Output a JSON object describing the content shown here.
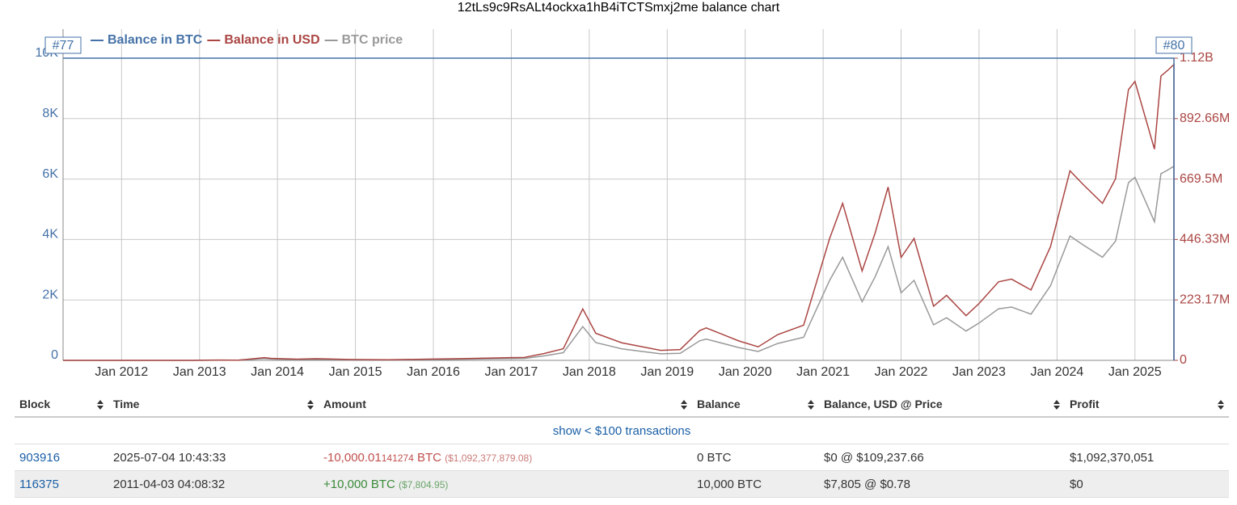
{
  "chart_data": {
    "type": "line",
    "title": "12tLs9c9RsALt4ockxa1hB4iTCTSmxj2me balance chart",
    "x": [
      "2011-04",
      "2011-06",
      "2011-12",
      "2012-06",
      "2012-12",
      "2013-04",
      "2013-07",
      "2013-11",
      "2013-12",
      "2014-04",
      "2014-07",
      "2014-12",
      "2015-06",
      "2015-12",
      "2016-06",
      "2016-12",
      "2017-03",
      "2017-06",
      "2017-09",
      "2017-12",
      "2018-02",
      "2018-06",
      "2018-12",
      "2019-03",
      "2019-06",
      "2019-07",
      "2019-12",
      "2020-03",
      "2020-06",
      "2020-10",
      "2020-12",
      "2021-02",
      "2021-04",
      "2021-07",
      "2021-09",
      "2021-11",
      "2022-01",
      "2022-03",
      "2022-06",
      "2022-08",
      "2022-11",
      "2023-01",
      "2023-04",
      "2023-06",
      "2023-09",
      "2023-12",
      "2024-03",
      "2024-05",
      "2024-08",
      "2024-10",
      "2024-12",
      "2025-01",
      "2025-04",
      "2025-05",
      "2025-06",
      "2025-07",
      "2025-07"
    ],
    "series": [
      {
        "name": "Balance in BTC",
        "color": "#4572a7",
        "axis": "y",
        "values": [
          10000,
          10000,
          10000,
          10000,
          10000,
          10000,
          10000,
          10000,
          10000,
          10000,
          10000,
          10000,
          10000,
          10000,
          10000,
          10000,
          10000,
          10000,
          10000,
          10000,
          10000,
          10000,
          10000,
          10000,
          10000,
          10000,
          10000,
          10000,
          10000,
          10000,
          10000,
          10000,
          10000,
          10000,
          10000,
          10000,
          10000,
          10000,
          10000,
          10000,
          10000,
          10000,
          10000,
          10000,
          10000,
          10000,
          10000,
          10000,
          10000,
          10000,
          10000,
          10000,
          10000,
          10000,
          10000,
          10000,
          0
        ]
      },
      {
        "name": "Balance in USD",
        "color": "#aa4643",
        "axis": "y2",
        "values": [
          7800,
          170000,
          40000,
          60000,
          130000,
          1300000,
          900000,
          10000000,
          7500000,
          4500000,
          6200000,
          3200000,
          2400000,
          4300000,
          6700000,
          9600000,
          11000000,
          25000000,
          43000000,
          190000000,
          100000000,
          65000000,
          37000000,
          40000000,
          110000000,
          120000000,
          72000000,
          50000000,
          95000000,
          130000000,
          290000000,
          450000000,
          580000000,
          330000000,
          470000000,
          640000000,
          380000000,
          450000000,
          200000000,
          240000000,
          165000000,
          210000000,
          290000000,
          300000000,
          260000000,
          420000000,
          700000000,
          650000000,
          580000000,
          670000000,
          1000000000,
          1030000000,
          780000000,
          1050000000,
          1070000000,
          1092376600,
          0
        ]
      },
      {
        "name": "BTC price",
        "color": "#999999",
        "axis": "y3",
        "values": [
          0.78,
          17,
          4,
          6,
          13,
          130,
          90,
          1000,
          750,
          450,
          620,
          320,
          240,
          430,
          670,
          960,
          1100,
          2500,
          4300,
          19000,
          10000,
          6500,
          3700,
          4000,
          11000,
          12000,
          7200,
          5000,
          9500,
          13000,
          29000,
          45000,
          58000,
          33000,
          47000,
          64000,
          38000,
          45000,
          20000,
          24000,
          16500,
          21000,
          29000,
          30000,
          26000,
          42000,
          70000,
          65000,
          58000,
          67000,
          100000,
          103000,
          78000,
          105000,
          107000,
          109237.66,
          109237.66
        ]
      }
    ],
    "xlim": [
      "2011-04",
      "2025-07"
    ],
    "xticks": [
      {
        "value": "2012-01",
        "label": "Jan 2012"
      },
      {
        "value": "2013-01",
        "label": "Jan 2013"
      },
      {
        "value": "2014-01",
        "label": "Jan 2014"
      },
      {
        "value": "2015-01",
        "label": "Jan 2015"
      },
      {
        "value": "2016-01",
        "label": "Jan 2016"
      },
      {
        "value": "2017-01",
        "label": "Jan 2017"
      },
      {
        "value": "2018-01",
        "label": "Jan 2018"
      },
      {
        "value": "2019-01",
        "label": "Jan 2019"
      },
      {
        "value": "2020-01",
        "label": "Jan 2020"
      },
      {
        "value": "2021-01",
        "label": "Jan 2021"
      },
      {
        "value": "2022-01",
        "label": "Jan 2022"
      },
      {
        "value": "2023-01",
        "label": "Jan 2023"
      },
      {
        "value": "2024-01",
        "label": "Jan 2024"
      },
      {
        "value": "2025-01",
        "label": "Jan 2025"
      }
    ],
    "ylim": [
      0,
      10000
    ],
    "yticks": [
      0,
      {
        "value": 2000,
        "label": "2K"
      },
      {
        "value": 4000,
        "label": "4K"
      },
      {
        "value": 6000,
        "label": "6K"
      },
      {
        "value": 8000,
        "label": "8K"
      },
      {
        "value": 10000,
        "label": "10K"
      }
    ],
    "y2lim": [
      0,
      1115850000
    ],
    "y2ticks": [
      0,
      {
        "value": 223170000,
        "label": "223.17M"
      },
      {
        "value": 446330000,
        "label": "446.33M"
      },
      {
        "value": 669500000,
        "label": "669.5M"
      },
      {
        "value": 892660000,
        "label": "892.66M"
      },
      {
        "value": 1115850000,
        "label": "1.12B"
      }
    ],
    "y3lim": [
      0,
      170000
    ],
    "grid": true,
    "annotations": [
      {
        "text": "#77",
        "x": "2011-04"
      },
      {
        "text": "#80",
        "x": "2025-07"
      }
    ]
  },
  "table": {
    "headers": [
      "Block",
      "Time",
      "Amount",
      "Balance",
      "Balance, USD @ Price",
      "Profit"
    ],
    "show_link": "show < $100 transactions",
    "rows": [
      {
        "block": "903916",
        "time": "2025-07-04 10:43:33",
        "amount": "-10,000.01",
        "amount_digits": "141274",
        "amount_unit": "BTC",
        "amount_usd": "($1,092,377,879.08)",
        "balance": "0 BTC",
        "balance_usd": "$0 @ $109,237.66",
        "profit": "$1,092,370,051"
      },
      {
        "block": "116375",
        "time": "2011-04-03 04:08:32",
        "amount": "+10,000",
        "amount_unit": "BTC",
        "amount_usd": "($7,804.95)",
        "balance": "10,000 BTC",
        "balance_usd": "$7,805 @ $0.78",
        "profit": "$0"
      }
    ]
  }
}
